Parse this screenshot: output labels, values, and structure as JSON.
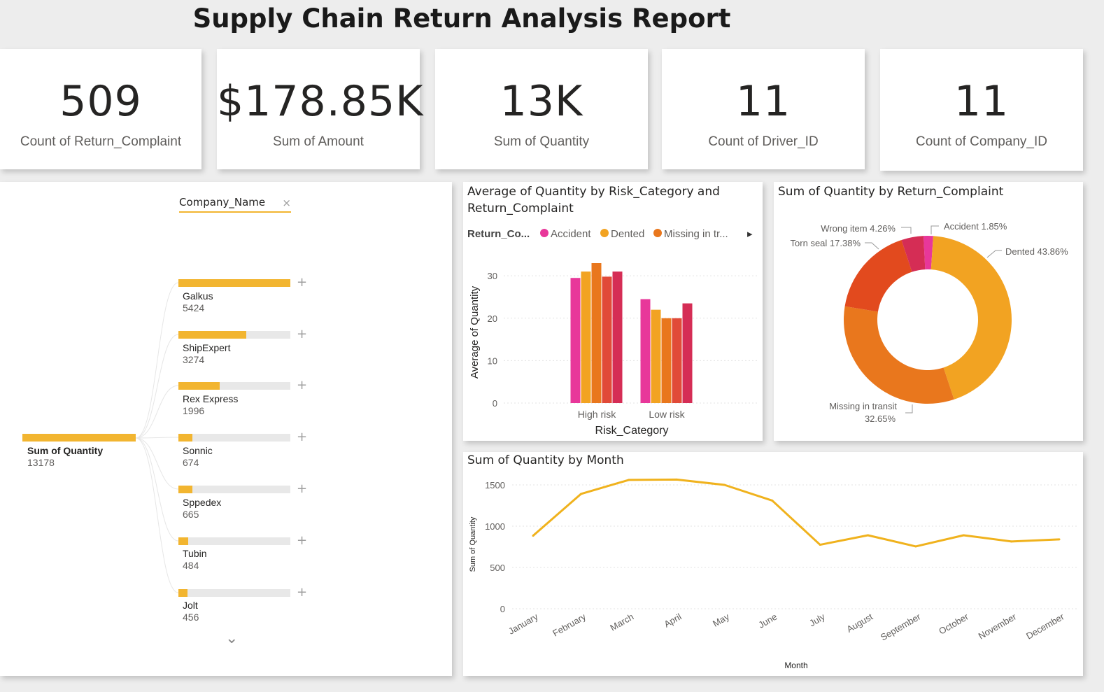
{
  "report_title": "Supply Chain Return Analysis Report",
  "kpis": [
    {
      "value": "509",
      "label": "Count of Return_Complaint"
    },
    {
      "value": "$178.85K",
      "label": "Sum of Amount"
    },
    {
      "value": "13K",
      "label": "Sum of Quantity"
    },
    {
      "value": "11",
      "label": "Count of Driver_ID"
    },
    {
      "value": "11",
      "label": "Count of Company_ID"
    }
  ],
  "decomposition_tree": {
    "level_header": "Company_Name",
    "close_glyph": "×",
    "expand_glyph": "+",
    "more_glyph": "⌄",
    "root": {
      "label": "Sum of Quantity",
      "value": "13178"
    },
    "nodes": [
      {
        "label": "Galkus",
        "value": "5424",
        "fraction": 1.0
      },
      {
        "label": "ShipExpert",
        "value": "3274",
        "fraction": 0.604
      },
      {
        "label": "Rex Express",
        "value": "1996",
        "fraction": 0.368
      },
      {
        "label": "Sonnic",
        "value": "674",
        "fraction": 0.124
      },
      {
        "label": "Sppedex",
        "value": "665",
        "fraction": 0.123
      },
      {
        "label": "Tubin",
        "value": "484",
        "fraction": 0.089
      },
      {
        "label": "Jolt",
        "value": "456",
        "fraction": 0.084
      }
    ]
  },
  "colors": {
    "accent": "#f2b530",
    "accident": "#e8379a",
    "dented": "#f2a322",
    "missing": "#e9771d",
    "torn": "#e24a1e",
    "wrong": "#d52d55",
    "line": "#f0b21d"
  },
  "chart_data": [
    {
      "type": "bar",
      "title": "Average of Quantity by Risk_Category and Return_Complaint",
      "legend_title": "Return_Co...",
      "legend_visible": [
        "Accident",
        "Dented",
        "Missing in tr..."
      ],
      "legend_arrow": "▸",
      "xlabel": "Risk_Category",
      "ylabel": "Average of Quantity",
      "categories": [
        "High risk",
        "Low risk"
      ],
      "yticks": [
        "0",
        "10",
        "20",
        "30"
      ],
      "ylim": [
        0,
        33
      ],
      "series": [
        {
          "name": "Accident",
          "values": [
            29.5,
            24.5
          ]
        },
        {
          "name": "Dented",
          "values": [
            31.0,
            22.0
          ]
        },
        {
          "name": "Missing in tr...",
          "values": [
            33.0,
            20.0
          ]
        },
        {
          "values": [
            29.8,
            20.0
          ]
        },
        {
          "values": [
            31.0,
            23.5
          ]
        }
      ]
    },
    {
      "type": "pie",
      "title": "Sum of Quantity by Return_Complaint",
      "slices": [
        {
          "name": "Accident",
          "value": 1.85,
          "label": "Accident 1.85%"
        },
        {
          "name": "Dented",
          "value": 43.86,
          "label": "Dented 43.86%"
        },
        {
          "name": "Missing in transit",
          "value": 32.65,
          "label_line1": "Missing in transit",
          "label_line2": "32.65%"
        },
        {
          "name": "Torn seal",
          "value": 17.38,
          "label": "Torn seal 17.38%"
        },
        {
          "name": "Wrong item",
          "value": 4.26,
          "label": "Wrong item 4.26%"
        }
      ]
    },
    {
      "type": "line",
      "title": "Sum of Quantity by Month",
      "xlabel": "Month",
      "ylabel": "Sum of Quantity",
      "x": [
        "January",
        "February",
        "March",
        "April",
        "May",
        "June",
        "July",
        "August",
        "September",
        "October",
        "November",
        "December"
      ],
      "y": [
        885,
        1390,
        1560,
        1565,
        1500,
        1310,
        775,
        890,
        755,
        890,
        815,
        840
      ],
      "yticks": [
        "0",
        "500",
        "1000",
        "1500"
      ],
      "ylim": [
        0,
        1600
      ]
    }
  ]
}
